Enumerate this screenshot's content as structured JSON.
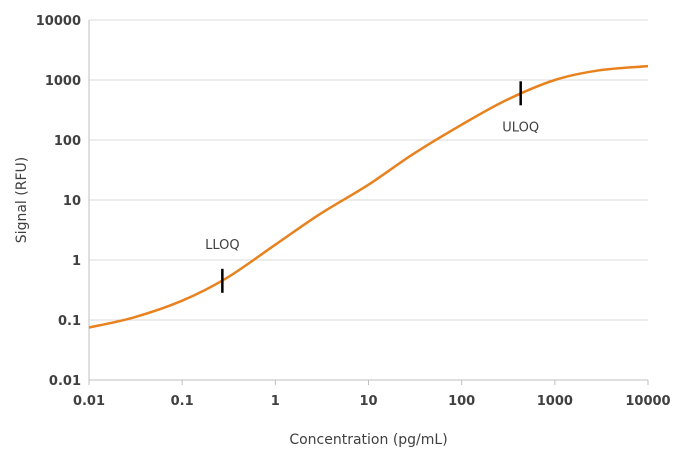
{
  "chart_data": {
    "type": "line",
    "title": "",
    "xlabel": "Concentration (pg/mL)",
    "ylabel": "Signal (RFU)",
    "xscale": "log",
    "yscale": "log",
    "xlim": [
      0.01,
      10000
    ],
    "ylim": [
      0.01,
      10000
    ],
    "x_ticks": [
      "0.01",
      "0.1",
      "1",
      "10",
      "100",
      "1000",
      "10000"
    ],
    "y_ticks": [
      "0.01",
      "0.1",
      "1",
      "10",
      "100",
      "1000",
      "10000"
    ],
    "grid": "horizontal",
    "series": [
      {
        "color": "#E8821E",
        "points": [
          [
            0.01,
            0.075
          ],
          [
            0.03,
            0.11
          ],
          [
            0.1,
            0.21
          ],
          [
            0.3,
            0.5
          ],
          [
            1,
            1.8
          ],
          [
            3,
            5.8
          ],
          [
            10,
            18
          ],
          [
            30,
            58
          ],
          [
            100,
            180
          ],
          [
            300,
            460
          ],
          [
            1000,
            1000
          ],
          [
            3000,
            1450
          ],
          [
            10000,
            1700
          ]
        ]
      }
    ],
    "annotations": [
      {
        "label": "LLOQ",
        "x": 0.27,
        "y": 0.45,
        "label_position": "above"
      },
      {
        "label": "ULOQ",
        "x": 430,
        "y": 600,
        "label_position": "below"
      }
    ]
  }
}
